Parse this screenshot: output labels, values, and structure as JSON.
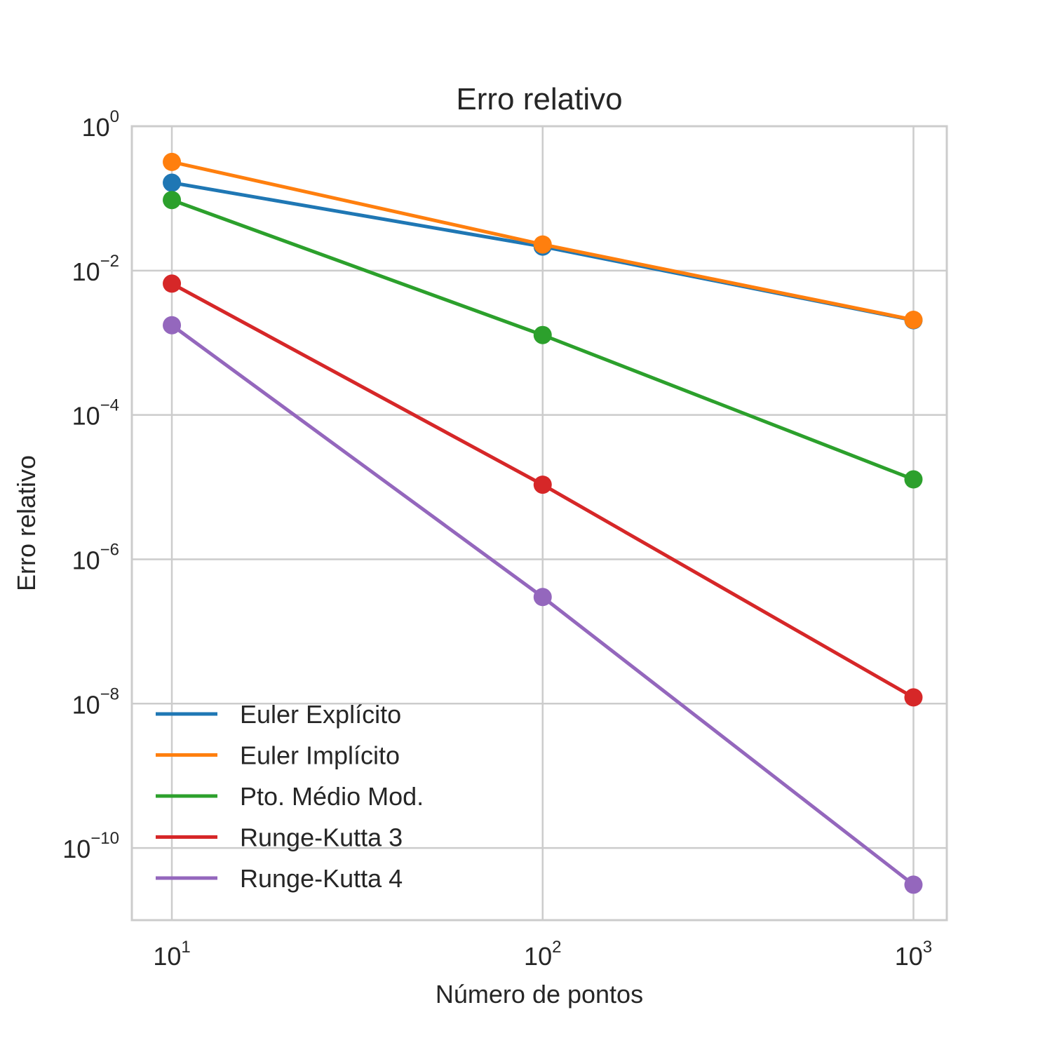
{
  "chart_data": {
    "type": "line",
    "title": "Erro relativo",
    "xlabel": "Número de pontos",
    "ylabel": "Erro relativo",
    "xscale": "log",
    "yscale": "log",
    "xlim": [
      7.8,
      1230
    ],
    "ylim": [
      1e-11,
      1.0
    ],
    "x": [
      10,
      100,
      1000
    ],
    "xticks": [
      {
        "value": 10,
        "base": "10",
        "exp": "1"
      },
      {
        "value": 100,
        "base": "10",
        "exp": "2"
      },
      {
        "value": 1000,
        "base": "10",
        "exp": "3"
      }
    ],
    "yticks": [
      {
        "value": 1,
        "base": "10",
        "exp": "0"
      },
      {
        "value": 0.01,
        "base": "10",
        "exp": "−2"
      },
      {
        "value": 0.0001,
        "base": "10",
        "exp": "−4"
      },
      {
        "value": 1e-06,
        "base": "10",
        "exp": "−6"
      },
      {
        "value": 1e-08,
        "base": "10",
        "exp": "−8"
      },
      {
        "value": 1e-10,
        "base": "10",
        "exp": "−10"
      }
    ],
    "grid": true,
    "legend_position": "lower-left",
    "series": [
      {
        "name": "Euler Explícito",
        "color": "#1f77b4",
        "values": [
          0.165,
          0.0215,
          0.00205
        ]
      },
      {
        "name": "Euler Implícito",
        "color": "#ff7f0e",
        "values": [
          0.32,
          0.023,
          0.00208
        ]
      },
      {
        "name": "Pto. Médio Mod.",
        "color": "#2ca02c",
        "values": [
          0.095,
          0.00128,
          1.28e-05
        ]
      },
      {
        "name": "Runge-Kutta 3",
        "color": "#d62728",
        "values": [
          0.0066,
          1.08e-05,
          1.22e-08
        ]
      },
      {
        "name": "Runge-Kutta 4",
        "color": "#9467bd",
        "values": [
          0.00175,
          3e-07,
          3.1e-11
        ]
      }
    ]
  }
}
